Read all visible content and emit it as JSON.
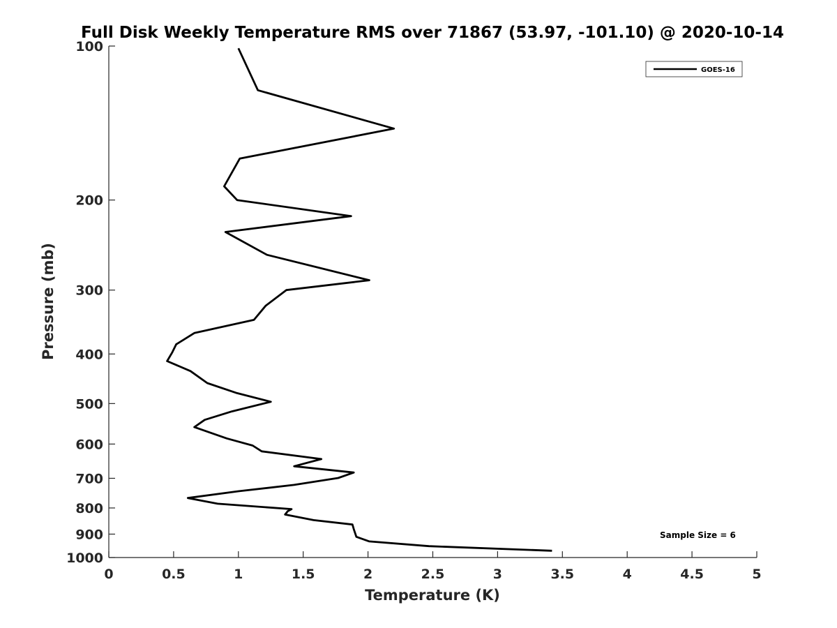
{
  "chart_data": {
    "type": "line",
    "title": "Full Disk Weekly Temperature RMS over 71867 (53.97, -101.10) @ 2020-10-14",
    "xlabel": "Temperature (K)",
    "ylabel": "Pressure (mb)",
    "xlim": [
      0,
      5
    ],
    "ylim": [
      100,
      1000
    ],
    "yscale": "log",
    "y_reversed": true,
    "grid": false,
    "legend_position": "top-right",
    "x_ticks": [
      "0",
      "0.5",
      "1",
      "1.5",
      "2",
      "2.5",
      "3",
      "3.5",
      "4",
      "4.5",
      "5"
    ],
    "x_tick_values": [
      0,
      0.5,
      1,
      1.5,
      2,
      2.5,
      3,
      3.5,
      4,
      4.5,
      5
    ],
    "y_ticks": [
      "100",
      "200",
      "300",
      "400",
      "500",
      "600",
      "700",
      "800",
      "900",
      "1000"
    ],
    "y_tick_values": [
      100,
      200,
      300,
      400,
      500,
      600,
      700,
      800,
      900,
      1000
    ],
    "series": [
      {
        "name": "GOES-16",
        "color": "#000000",
        "x": [
          1.0,
          1.15,
          2.2,
          1.01,
          0.89,
          0.99,
          1.87,
          0.9,
          1.22,
          2.01,
          1.37,
          1.21,
          1.12,
          0.66,
          0.52,
          0.49,
          0.45,
          0.63,
          0.76,
          0.99,
          1.25,
          0.95,
          0.74,
          0.66,
          0.91,
          1.11,
          1.18,
          1.64,
          1.43,
          1.89,
          1.77,
          1.43,
          1.0,
          0.61,
          0.84,
          1.41,
          1.38,
          1.36,
          1.58,
          1.88,
          1.89,
          1.91,
          2.01,
          2.47,
          3.42
        ],
        "y": [
          101,
          122,
          145,
          166,
          188,
          200,
          215,
          231,
          256,
          287,
          300,
          322,
          343,
          364,
          383,
          397,
          413,
          432,
          456,
          477,
          496,
          518,
          538,
          556,
          585,
          604,
          620,
          642,
          663,
          682,
          699,
          721,
          742,
          765,
          785,
          804,
          812,
          824,
          845,
          862,
          880,
          911,
          930,
          950,
          970
        ]
      }
    ],
    "annotation": "Sample Size = 6"
  }
}
